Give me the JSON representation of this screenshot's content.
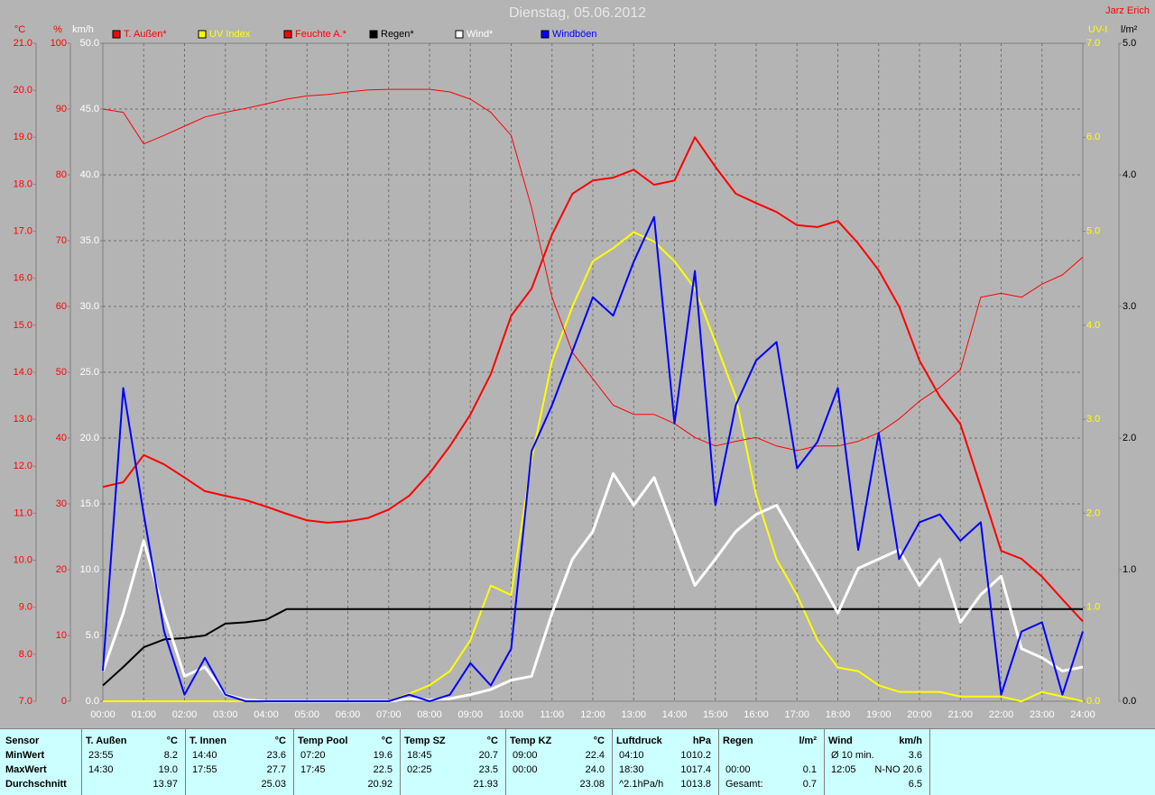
{
  "chart_data": {
    "type": "line",
    "title": "Dienstag, 05.06.2012",
    "author": "Jarz Erich",
    "grid": true,
    "legend": "top",
    "x": [
      0,
      0.5,
      1,
      1.5,
      2,
      2.5,
      3,
      3.5,
      4,
      4.5,
      5,
      5.5,
      6,
      6.5,
      7,
      7.5,
      8,
      8.5,
      9,
      9.5,
      10,
      10.5,
      11,
      11.5,
      12,
      12.5,
      13,
      13.5,
      14,
      14.5,
      15,
      15.5,
      16,
      16.5,
      17,
      17.5,
      18,
      18.5,
      19,
      19.5,
      20,
      20.5,
      21,
      21.5,
      22,
      22.5,
      23,
      23.5,
      24
    ],
    "xlim": [
      0,
      24
    ],
    "xticks": [
      {
        "value": 0,
        "label": "00:00"
      },
      {
        "value": 1,
        "label": "01:00"
      },
      {
        "value": 2,
        "label": "02:00"
      },
      {
        "value": 3,
        "label": "03:00"
      },
      {
        "value": 4,
        "label": "04:00"
      },
      {
        "value": 5,
        "label": "05:00"
      },
      {
        "value": 6,
        "label": "06:00"
      },
      {
        "value": 7,
        "label": "07:00"
      },
      {
        "value": 8,
        "label": "08:00"
      },
      {
        "value": 9,
        "label": "09:00"
      },
      {
        "value": 10,
        "label": "10:00"
      },
      {
        "value": 11,
        "label": "11:00"
      },
      {
        "value": 12,
        "label": "12:00"
      },
      {
        "value": 13,
        "label": "13:00"
      },
      {
        "value": 14,
        "label": "14:00"
      },
      {
        "value": 15,
        "label": "15:00"
      },
      {
        "value": 16,
        "label": "16:00"
      },
      {
        "value": 17,
        "label": "17:00"
      },
      {
        "value": 18,
        "label": "18:00"
      },
      {
        "value": 19,
        "label": "19:00"
      },
      {
        "value": 20,
        "label": "20:00"
      },
      {
        "value": 21,
        "label": "21:00"
      },
      {
        "value": 22,
        "label": "22:00"
      },
      {
        "value": 23,
        "label": "23:00"
      },
      {
        "value": 24,
        "label": "24:00"
      }
    ],
    "axes": [
      {
        "label": "°C",
        "color": "#ff0000",
        "side": "left",
        "lim": [
          7,
          21
        ],
        "ticks": [
          {
            "value": 7,
            "label": "7.0"
          },
          {
            "value": 8,
            "label": "8.0"
          },
          {
            "value": 9,
            "label": "9.0"
          },
          {
            "value": 10,
            "label": "10.0"
          },
          {
            "value": 11,
            "label": "11.0"
          },
          {
            "value": 12,
            "label": "12.0"
          },
          {
            "value": 13,
            "label": "13.0"
          },
          {
            "value": 14,
            "label": "14.0"
          },
          {
            "value": 15,
            "label": "15.0"
          },
          {
            "value": 16,
            "label": "16.0"
          },
          {
            "value": 17,
            "label": "17.0"
          },
          {
            "value": 18,
            "label": "18.0"
          },
          {
            "value": 19,
            "label": "19.0"
          },
          {
            "value": 20,
            "label": "20.0"
          },
          {
            "value": 21,
            "label": "21.0"
          }
        ]
      },
      {
        "label": "%",
        "color": "#ff0000",
        "side": "left",
        "lim": [
          0,
          100
        ],
        "ticks": [
          0,
          10,
          20,
          30,
          40,
          50,
          60,
          70,
          80,
          90,
          100
        ]
      },
      {
        "label": "km/h",
        "color": "#ffffff",
        "side": "left",
        "lim": [
          0,
          50
        ],
        "ticks": [
          {
            "value": 0,
            "label": "0.0"
          },
          {
            "value": 5,
            "label": "5.0"
          },
          {
            "value": 10,
            "label": "10.0"
          },
          {
            "value": 15,
            "label": "15.0"
          },
          {
            "value": 20,
            "label": "20.0"
          },
          {
            "value": 25,
            "label": "25.0"
          },
          {
            "value": 30,
            "label": "30.0"
          },
          {
            "value": 35,
            "label": "35.0"
          },
          {
            "value": 40,
            "label": "40.0"
          },
          {
            "value": 45,
            "label": "45.0"
          },
          {
            "value": 50,
            "label": "50.0"
          }
        ]
      },
      {
        "label": "UV-I",
        "color": "#ffff00",
        "side": "right",
        "lim": [
          0,
          7
        ],
        "ticks": [
          {
            "value": 0,
            "label": "0.0"
          },
          {
            "value": 1,
            "label": "1.0"
          },
          {
            "value": 2,
            "label": "2.0"
          },
          {
            "value": 3,
            "label": "3.0"
          },
          {
            "value": 4,
            "label": "4.0"
          },
          {
            "value": 5,
            "label": "5.0"
          },
          {
            "value": 6,
            "label": "6.0"
          },
          {
            "value": 7,
            "label": "7.0"
          }
        ]
      },
      {
        "label": "l/m²",
        "color": "#000000",
        "side": "right",
        "lim": [
          0,
          5
        ],
        "ticks": [
          {
            "value": 0,
            "label": "0.0"
          },
          {
            "value": 1,
            "label": "1.0"
          },
          {
            "value": 2,
            "label": "2.0"
          },
          {
            "value": 3,
            "label": "3.0"
          },
          {
            "value": 4,
            "label": "4.0"
          },
          {
            "value": 5,
            "label": "5.0"
          }
        ]
      }
    ],
    "series": [
      {
        "name": "T. Außen*",
        "color": "#ff0000",
        "axis": 0,
        "linewidth": 2,
        "values": [
          11.56,
          11.66,
          12.24,
          12.04,
          11.76,
          11.47,
          11.37,
          11.28,
          11.14,
          10.99,
          10.85,
          10.8,
          10.83,
          10.9,
          11.08,
          11.37,
          11.85,
          12.43,
          13.1,
          13.96,
          15.2,
          15.78,
          16.93,
          17.8,
          18.08,
          18.14,
          18.31,
          17.99,
          18.08,
          19.0,
          18.37,
          17.8,
          17.6,
          17.41,
          17.13,
          17.09,
          17.22,
          16.74,
          16.17,
          15.4,
          14.25,
          13.48,
          12.9,
          11.56,
          10.2,
          10.03,
          9.65,
          9.17,
          8.7
        ]
      },
      {
        "name": "UV Index",
        "color": "#ffff00",
        "axis": 3,
        "linewidth": 2,
        "values": [
          0,
          0,
          0,
          0,
          0,
          0,
          0,
          0,
          0,
          0,
          0,
          0,
          0,
          0,
          0,
          0.08,
          0.17,
          0.32,
          0.65,
          1.23,
          1.13,
          2.57,
          3.62,
          4.2,
          4.68,
          4.82,
          4.99,
          4.89,
          4.68,
          4.39,
          3.82,
          3.24,
          2.19,
          1.51,
          1.13,
          0.65,
          0.36,
          0.32,
          0.17,
          0.1,
          0.1,
          0.1,
          0.05,
          0.05,
          0.05,
          0,
          0.1,
          0.05,
          0
        ]
      },
      {
        "name": "Feuchte A.*",
        "color": "#ff0000",
        "axis": 1,
        "linewidth": 1,
        "values": [
          90,
          89.5,
          84.7,
          86,
          87.4,
          88.8,
          89.5,
          90.1,
          90.8,
          91.5,
          92,
          92.2,
          92.6,
          92.9,
          93,
          93,
          93,
          92.6,
          91.5,
          89.5,
          86,
          75,
          61.4,
          53,
          49,
          45,
          43.6,
          43.6,
          42.2,
          40.1,
          38.8,
          39.5,
          40.1,
          38.8,
          38.1,
          38.8,
          38.8,
          39.5,
          40.8,
          42.9,
          45.6,
          47.7,
          50.4,
          61.4,
          62,
          61.4,
          63.4,
          64.8,
          67.5
        ]
      },
      {
        "name": "Regen*",
        "color": "#000000",
        "axis": 4,
        "linewidth": 2,
        "values": [
          0.12,
          0.26,
          0.41,
          0.47,
          0.48,
          0.5,
          0.59,
          0.6,
          0.62,
          0.7,
          0.7,
          0.7,
          0.7,
          0.7,
          0.7,
          0.7,
          0.7,
          0.7,
          0.7,
          0.7,
          0.7,
          0.7,
          0.7,
          0.7,
          0.7,
          0.7,
          0.7,
          0.7,
          0.7,
          0.7,
          0.7,
          0.7,
          0.7,
          0.7,
          0.7,
          0.7,
          0.7,
          0.7,
          0.7,
          0.7,
          0.7,
          0.7,
          0.7,
          0.7,
          0.7,
          0.7,
          0.7,
          0.7,
          0.7
        ]
      },
      {
        "name": "Wind*",
        "color": "#ffffff",
        "axis": 2,
        "linewidth": 3,
        "values": [
          2.26,
          6.7,
          12.2,
          6.7,
          1.9,
          2.6,
          0.5,
          0.1,
          0,
          0,
          0,
          0,
          0,
          0,
          0,
          0.2,
          0.1,
          0.2,
          0.5,
          0.9,
          1.6,
          1.9,
          6.7,
          10.8,
          12.9,
          17.3,
          14.9,
          17,
          12.9,
          8.8,
          10.8,
          12.9,
          14.2,
          14.9,
          12.2,
          9.5,
          6.7,
          10.1,
          10.8,
          11.5,
          8.8,
          10.8,
          6,
          8.1,
          9.5,
          4,
          3.3,
          2.3,
          2.6
        ]
      },
      {
        "name": "Windböen",
        "color": "#0000ff",
        "axis": 2,
        "linewidth": 2,
        "values": [
          2.3,
          23.8,
          14.2,
          5.3,
          0.5,
          3.3,
          0.5,
          0,
          0,
          0,
          0,
          0,
          0,
          0,
          0,
          0.5,
          0,
          0.5,
          2.9,
          1.2,
          4,
          19,
          22.5,
          26.6,
          30.7,
          29.3,
          33.4,
          36.8,
          21.1,
          32.7,
          14.9,
          22.5,
          25.9,
          27.3,
          17.7,
          19.7,
          23.8,
          11.5,
          20.4,
          10.8,
          13.6,
          14.2,
          12.2,
          13.6,
          0.5,
          5.3,
          6,
          0.5,
          5.3
        ]
      }
    ]
  },
  "stats": {
    "row_labels": [
      "Sensor",
      "MinWert",
      "MaxWert",
      "Durchschnitt"
    ],
    "groups": [
      {
        "name": "T. Außen",
        "unit": "°C",
        "rows": [
          [
            "23:55",
            "8.2"
          ],
          [
            "14:30",
            "19.0"
          ],
          [
            null,
            "13.97"
          ]
        ]
      },
      {
        "name": "T. Innen",
        "unit": "°C",
        "rows": [
          [
            "14:40",
            "23.6"
          ],
          [
            "17:55",
            "27.7"
          ],
          [
            null,
            "25.03"
          ]
        ]
      },
      {
        "name": "Temp Pool",
        "unit": "°C",
        "rows": [
          [
            "07:20",
            "19.6"
          ],
          [
            "17:45",
            "22.5"
          ],
          [
            null,
            "20.92"
          ]
        ]
      },
      {
        "name": "Temp SZ",
        "unit": "°C",
        "rows": [
          [
            "18:45",
            "20.7"
          ],
          [
            "02:25",
            "23.5"
          ],
          [
            null,
            "21.93"
          ]
        ]
      },
      {
        "name": "Temp KZ",
        "unit": "°C",
        "rows": [
          [
            "09:00",
            "22.4"
          ],
          [
            "00:00",
            "24.0"
          ],
          [
            null,
            "23.08"
          ]
        ]
      },
      {
        "name": "Luftdruck",
        "unit": "hPa",
        "rows": [
          [
            "04:10",
            "1010.2"
          ],
          [
            "18:30",
            "1017.4"
          ],
          [
            "^2.1hPa/h",
            "1013.8"
          ]
        ]
      },
      {
        "name": "Regen",
        "unit": "l/m²",
        "rows": [
          [
            null,
            null
          ],
          [
            "00:00",
            "0.1"
          ],
          [
            "Gesamt:",
            "0.7"
          ]
        ]
      },
      {
        "name": "Wind",
        "unit": "km/h",
        "rows": [
          [
            "Ø 10 min.",
            "3.6"
          ],
          [
            "12:05",
            "N-NO 20.6"
          ],
          [
            null,
            "6.5"
          ]
        ]
      }
    ]
  }
}
